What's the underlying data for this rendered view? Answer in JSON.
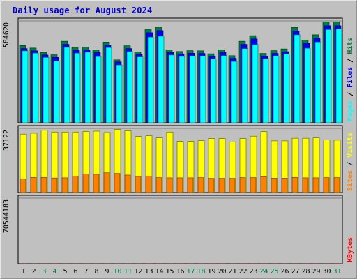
{
  "chart_data": {
    "type": "bar",
    "title": "Daily usage for August 2024",
    "categories": [
      "1",
      "2",
      "3",
      "4",
      "5",
      "6",
      "7",
      "8",
      "9",
      "10",
      "11",
      "12",
      "13",
      "14",
      "15",
      "16",
      "17",
      "18",
      "19",
      "20",
      "21",
      "22",
      "23",
      "24",
      "25",
      "26",
      "27",
      "28",
      "29",
      "30",
      "31"
    ],
    "weekend_days": [
      "3",
      "4",
      "10",
      "11",
      "17",
      "18",
      "24",
      "25",
      "31"
    ],
    "panels": [
      {
        "name": "hits-files-pages",
        "max_label": "584620",
        "ymax": 584620,
        "side_labels": [
          "Pages",
          "Files",
          "Hits"
        ],
        "series": [
          {
            "name": "Hits",
            "color": "#008040",
            "values": [
              443000,
              429000,
              404000,
              390000,
              468000,
              433000,
              434000,
              418000,
              463000,
              361000,
              442000,
              407000,
              537000,
              549000,
              418000,
              409000,
              414000,
              413000,
              396000,
              419000,
              385000,
              468000,
              500000,
              398000,
              414000,
              424000,
              548000,
              474000,
              505000,
              579000,
              579000
            ]
          },
          {
            "name": "Files",
            "color": "#0000ff",
            "values": [
              426000,
              413000,
              389000,
              375000,
              450000,
              417000,
              418000,
              403000,
              446000,
              349000,
              426000,
              392000,
              517000,
              529000,
              403000,
              394000,
              399000,
              398000,
              381000,
              404000,
              370000,
              450000,
              481000,
              383000,
              398000,
              408000,
              527000,
              456000,
              486000,
              557000,
              557000
            ]
          },
          {
            "name": "Pages",
            "color": "#00ffff",
            "values": [
              413000,
              400000,
              375000,
              354000,
              433000,
              400000,
              405000,
              380000,
              432000,
              332000,
              410000,
              378000,
              492000,
              497000,
              389000,
              381000,
              384000,
              384000,
              367000,
              386000,
              352000,
              426000,
              449000,
              368000,
              384000,
              395000,
              505000,
              428000,
              464000,
              535000,
              538000
            ]
          }
        ]
      },
      {
        "name": "sites-visits",
        "max_label": "37122",
        "ymax": 37122,
        "side_labels": [
          "Sites",
          "Visits"
        ],
        "series": [
          {
            "name": "Visits",
            "color": "#ffff00",
            "values": [
              33800,
              34300,
              36000,
              35000,
              35000,
              35000,
              35300,
              35500,
              34700,
              36500,
              35700,
              32400,
              32800,
              31600,
              35000,
              29600,
              29600,
              30000,
              31200,
              31200,
              29300,
              31200,
              32600,
              35200,
              29900,
              29900,
              31400,
              31400,
              31600,
              30400,
              30300
            ]
          },
          {
            "name": "Sites",
            "color": "#ff8000",
            "values": [
              7900,
              8700,
              8700,
              8400,
              8500,
              9400,
              10700,
              10500,
              11400,
              11000,
              10100,
              9300,
              9500,
              8600,
              8500,
              8500,
              8500,
              8600,
              8200,
              8200,
              8200,
              8600,
              8600,
              9200,
              8300,
              8300,
              8700,
              8500,
              8500,
              8600,
              8600
            ]
          }
        ]
      },
      {
        "name": "kbytes",
        "max_label": "70544183",
        "ymax": 70544183,
        "side_labels": [
          "KBytes"
        ],
        "series": [
          {
            "name": "KBytes",
            "color": "#ff0000",
            "values": [
              13800,
              12700,
              11800,
              13000,
              16600,
              17400,
              17800,
              14000,
              26800,
              17400,
              24100,
              20200,
              70500,
              20200,
              20700,
              18500,
              23600,
              22400,
              22400,
              22000,
              24300,
              23400,
              24100,
              18500,
              23800,
              17400,
              18600,
              21300,
              17800,
              26000,
              41000
            ]
          }
        ]
      }
    ]
  }
}
